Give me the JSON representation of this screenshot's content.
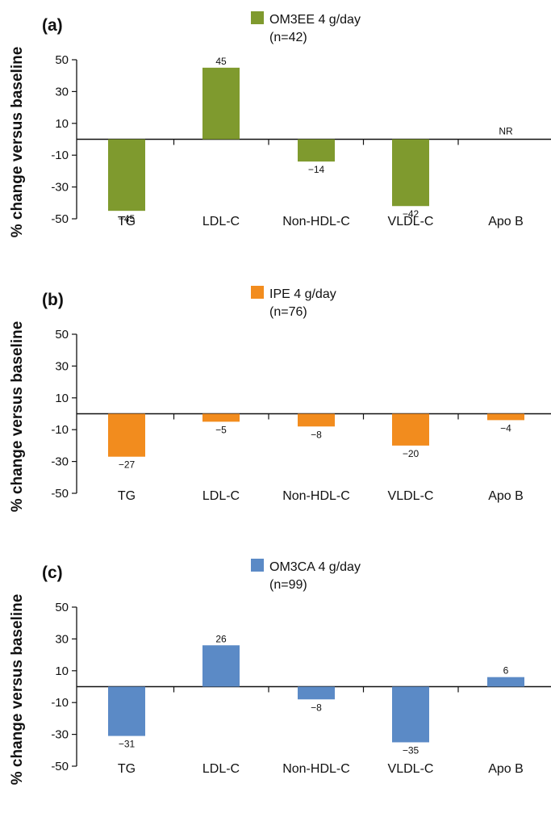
{
  "chart_data": [
    {
      "type": "bar",
      "panel_label": "(a)",
      "legend": {
        "label": "OM3EE 4 g/day",
        "n": "(n=42)",
        "color": "#7F9A2E"
      },
      "ylabel": "% change versus baseline",
      "ylim": [
        -50,
        50
      ],
      "yticks": [
        50,
        30,
        10,
        -10,
        -30,
        -50
      ],
      "categories": [
        "TG",
        "LDL-C",
        "Non-HDL-C",
        "VLDL-C",
        "Apo B"
      ],
      "series": [
        {
          "values": [
            -45,
            45,
            -14,
            -42,
            null
          ]
        }
      ],
      "data_labels": [
        "−45",
        "45",
        "−14",
        "−42",
        "NR"
      ]
    },
    {
      "type": "bar",
      "panel_label": "(b)",
      "legend": {
        "label": "IPE 4 g/day",
        "n": "(n=76)",
        "color": "#F28C1E"
      },
      "ylabel": "% change versus baseline",
      "ylim": [
        -50,
        50
      ],
      "yticks": [
        50,
        30,
        10,
        -10,
        -30,
        -50
      ],
      "categories": [
        "TG",
        "LDL-C",
        "Non-HDL-C",
        "VLDL-C",
        "Apo B"
      ],
      "series": [
        {
          "values": [
            -27,
            -5,
            -8,
            -20,
            -4
          ]
        }
      ],
      "data_labels": [
        "−27",
        "−5",
        "−8",
        "−20",
        "−4"
      ]
    },
    {
      "type": "bar",
      "panel_label": "(c)",
      "legend": {
        "label": "OM3CA 4 g/day",
        "n": "(n=99)",
        "color": "#5B8AC6"
      },
      "ylabel": "% change versus baseline",
      "ylim": [
        -50,
        50
      ],
      "yticks": [
        50,
        30,
        10,
        -10,
        -30,
        -50
      ],
      "categories": [
        "TG",
        "LDL-C",
        "Non-HDL-C",
        "VLDL-C",
        "Apo B"
      ],
      "series": [
        {
          "values": [
            -31,
            26,
            -8,
            -35,
            6
          ]
        }
      ],
      "data_labels": [
        "−31",
        "26",
        "−8",
        "−35",
        "6"
      ]
    }
  ]
}
